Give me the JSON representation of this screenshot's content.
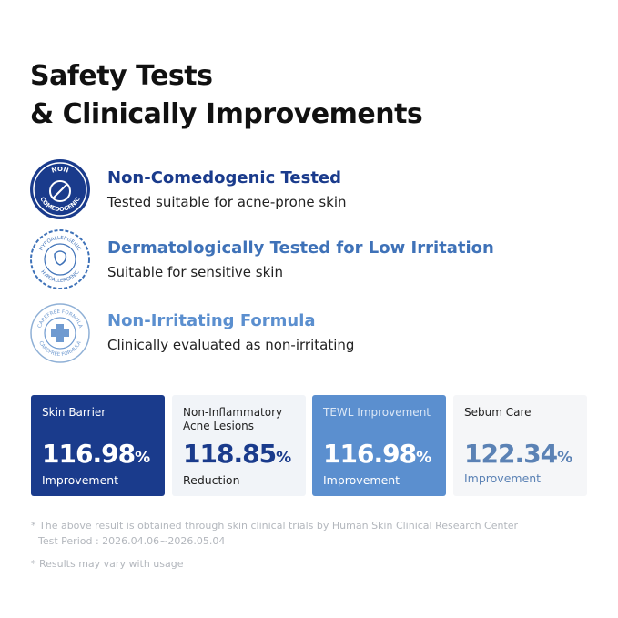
{
  "header": {
    "title_line1": "Safety Tests",
    "title_line2": "& Clinically Improvements"
  },
  "features": [
    {
      "badge_top": "NON",
      "badge_bottom": "COMEDOGENIC",
      "title": "Non-Comedogenic Tested",
      "subtitle": "Tested suitable for acne-prone skin"
    },
    {
      "badge_top": "HYPOALLERGENIC",
      "badge_bottom": "HYPOALLERGENIC",
      "title": "Dermatologically Tested for Low Irritation",
      "subtitle": "Suitable for sensitive skin"
    },
    {
      "badge_top": "CAREFREE FORMULA",
      "badge_bottom": "CAREFREE FORMULA",
      "title": "Non-Irritating Formula",
      "subtitle": "Clinically evaluated as non-irritating"
    }
  ],
  "cards": [
    {
      "label": "Skin Barrier",
      "value": "116.98",
      "unit": "%",
      "caption": "Improvement"
    },
    {
      "label": "Non-Inflammatory Acne Lesions",
      "value": "118.85",
      "unit": "%",
      "caption": "Reduction"
    },
    {
      "label": "TEWL Improvement",
      "value": "116.98",
      "unit": "%",
      "caption": "Improvement"
    },
    {
      "label": "Sebum Care",
      "value": "122.34",
      "unit": "%",
      "caption": "Improvement"
    }
  ],
  "footnotes": [
    "* The above result is obtained through skin clinical trials  by Human Skin Clinical Research Center",
    "Test Period : 2026.04.06~2026.05.04",
    "* Results may vary with usage"
  ]
}
